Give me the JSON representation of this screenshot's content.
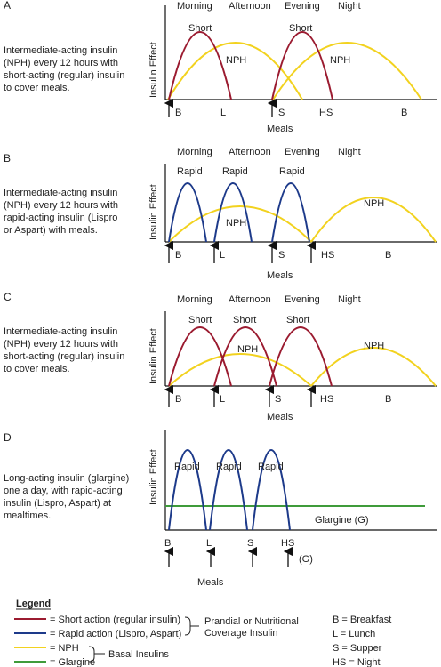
{
  "colors": {
    "short": "#9b1b30",
    "rapid": "#1d3a8a",
    "nph": "#f2d21f",
    "glargine": "#3f9b3a",
    "axis": "#111111",
    "text": "#222222"
  },
  "y_axis_label": "Insulin Effect",
  "meals_label": "Meals",
  "panels": [
    {
      "letter": "A",
      "description": [
        "Intermediate-acting insulin",
        "(NPH) every 12 hours with",
        "short-acting (regular) insulin",
        "to cover meals."
      ],
      "periods": [
        "Morning",
        "Afternoon",
        "Evening",
        "Night"
      ],
      "curve_labels": [
        "Short",
        "NPH",
        "Short",
        "NPH"
      ],
      "meal_labels": [
        "B",
        "L",
        "S",
        "HS",
        "B"
      ]
    },
    {
      "letter": "B",
      "description": [
        "Intermediate-acting insulin",
        "(NPH) every 12 hours with",
        "rapid-acting insulin (Lispro",
        "or Aspart) with meals."
      ],
      "periods": [
        "Morning",
        "Afternoon",
        "Evening",
        "Night"
      ],
      "curve_labels": [
        "Rapid",
        "Rapid",
        "Rapid",
        "NPH",
        "NPH"
      ],
      "meal_labels": [
        "B",
        "L",
        "S",
        "HS",
        "B"
      ]
    },
    {
      "letter": "C",
      "description": [
        "Intermediate-acting insulin",
        "(NPH) every 12 hours with",
        "short-acting (regular) insulin",
        "to cover meals."
      ],
      "periods": [
        "Morning",
        "Afternoon",
        "Evening",
        "Night"
      ],
      "curve_labels": [
        "Short",
        "Short",
        "Short",
        "NPH",
        "NPH"
      ],
      "meal_labels": [
        "B",
        "L",
        "S",
        "HS",
        "B"
      ]
    },
    {
      "letter": "D",
      "description": [
        "Long-acting insulin (glargine)",
        "one a day, with rapid-acting",
        "insulin (Lispro, Aspart) at",
        "mealtimes."
      ],
      "curve_labels": [
        "Rapid",
        "Rapid",
        "Rapid",
        "Glargine (G)"
      ],
      "meal_labels": [
        "B",
        "L",
        "S",
        "HS"
      ],
      "extra_label": "(G)"
    }
  ],
  "legend": {
    "title": "Legend",
    "items": [
      "= Short action (regular insulin)",
      "= Rapid action (Lispro, Aspart)",
      "= NPH",
      "= Glargine"
    ],
    "prandial_group": [
      "Prandial or Nutritional",
      "Coverage Insulin"
    ],
    "basal_group": "Basal Insulins",
    "abbreviations": [
      "B = Breakfast",
      "L = Lunch",
      "S = Supper",
      "HS = Night"
    ]
  }
}
